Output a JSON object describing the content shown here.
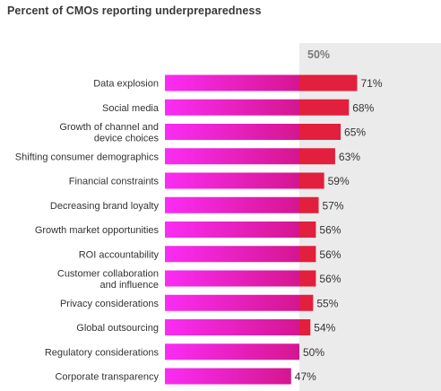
{
  "chart_data": {
    "type": "bar",
    "orientation": "horizontal",
    "title": "Percent of CMOs reporting underpreparedness",
    "reference_line": {
      "value": 50,
      "label": "50%"
    },
    "categories": [
      [
        "Data explosion"
      ],
      [
        "Social media"
      ],
      [
        "Growth of channel and",
        "device choices"
      ],
      [
        "Shifting consumer demographics"
      ],
      [
        "Financial constraints"
      ],
      [
        "Decreasing brand loyalty"
      ],
      [
        "Growth market opportunities"
      ],
      [
        "ROI accountability"
      ],
      [
        "Customer collaboration",
        "and influence"
      ],
      [
        "Privacy considerations"
      ],
      [
        "Global outsourcing"
      ],
      [
        "Regulatory considerations"
      ],
      [
        "Corporate transparency"
      ]
    ],
    "values": [
      71,
      68,
      65,
      63,
      59,
      57,
      56,
      56,
      56,
      55,
      54,
      50,
      47
    ],
    "value_labels": [
      "71%",
      "68%",
      "65%",
      "63%",
      "59%",
      "57%",
      "56%",
      "56%",
      "56%",
      "55%",
      "54%",
      "50%",
      "47%"
    ],
    "colors": {
      "below_reference": "#ee1fd0",
      "above_reference": "#e21f3c",
      "band": "#ebebeb"
    }
  }
}
